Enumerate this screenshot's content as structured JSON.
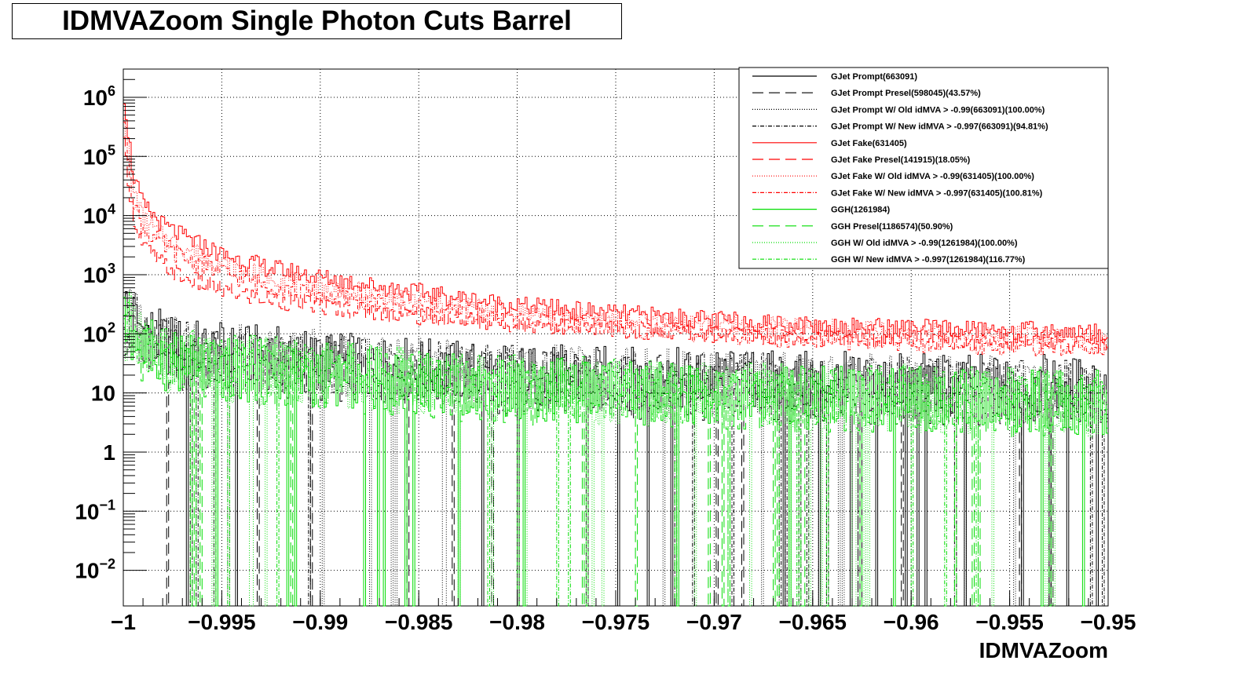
{
  "title": "IDMVAZoom Single Photon Cuts Barrel",
  "chart_data": {
    "type": "line",
    "title": "IDMVAZoom Single Photon Cuts Barrel",
    "xlabel": "IDMVAZoom",
    "ylabel": "",
    "xlim": [
      -1,
      -0.95
    ],
    "ylim": [
      0.0025,
      3000000
    ],
    "y_scale": "log",
    "grid": true,
    "x_ticks": [
      "−1",
      "−0.995",
      "−0.99",
      "−0.985",
      "−0.98",
      "−0.975",
      "−0.97",
      "−0.965",
      "−0.96",
      "−0.955",
      "−0.95"
    ],
    "x_tick_values": [
      -1,
      -0.995,
      -0.99,
      -0.985,
      -0.98,
      -0.975,
      -0.97,
      -0.965,
      -0.96,
      -0.955,
      -0.95
    ],
    "y_ticks": [
      {
        "value": 1000000,
        "base": "10",
        "exp": "6"
      },
      {
        "value": 100000,
        "base": "10",
        "exp": "5"
      },
      {
        "value": 10000,
        "base": "10",
        "exp": "4"
      },
      {
        "value": 1000,
        "base": "10",
        "exp": "3"
      },
      {
        "value": 100,
        "base": "10",
        "exp": "2"
      },
      {
        "value": 10,
        "base": "10",
        "exp": ""
      },
      {
        "value": 1,
        "base": "1",
        "exp": ""
      },
      {
        "value": 0.1,
        "base": "10",
        "exp": "−1"
      },
      {
        "value": 0.01,
        "base": "10",
        "exp": "−2"
      }
    ],
    "legend_position": "top-right",
    "series": [
      {
        "name": "GJet Prompt(663091)",
        "color": "#000000",
        "dash": "solid",
        "x": [
          -1,
          -0.999,
          -0.998,
          -0.997,
          -0.995,
          -0.99,
          -0.985,
          -0.98,
          -0.975,
          -0.97,
          -0.965,
          -0.96,
          -0.955,
          -0.95
        ],
        "y": [
          300,
          120,
          70,
          55,
          45,
          35,
          25,
          20,
          18,
          16,
          15,
          14,
          13,
          12
        ]
      },
      {
        "name": "GJet Prompt Presel(598045)(43.57%)",
        "color": "#000000",
        "dash": "longdash",
        "x": [
          -1,
          -0.999,
          -0.998,
          -0.997,
          -0.995,
          -0.99,
          -0.985,
          -0.98,
          -0.975,
          -0.97,
          -0.965,
          -0.96,
          -0.955,
          -0.95
        ],
        "y": [
          150,
          70,
          45,
          38,
          32,
          25,
          18,
          15,
          13,
          12,
          11,
          10,
          9,
          9
        ]
      },
      {
        "name": "GJet Prompt W/ Old idMVA > -0.99(663091)(100.00%)",
        "color": "#000000",
        "dash": "dotted",
        "x": [
          -1,
          -0.999,
          -0.998,
          -0.997,
          -0.995,
          -0.99,
          -0.985,
          -0.98,
          -0.975,
          -0.97,
          -0.965,
          -0.96,
          -0.955,
          -0.95
        ],
        "y": [
          280,
          110,
          65,
          50,
          42,
          33,
          24,
          19,
          17,
          15,
          14,
          13,
          12,
          11
        ]
      },
      {
        "name": "GJet Prompt W/ New idMVA > -0.997(663091)(94.81%)",
        "color": "#000000",
        "dash": "dashdot",
        "x": [
          -1,
          -0.999,
          -0.998,
          -0.997,
          -0.995,
          -0.99,
          -0.985,
          -0.98,
          -0.975,
          -0.97,
          -0.965,
          -0.96,
          -0.955,
          -0.95
        ],
        "y": [
          260,
          105,
          62,
          48,
          40,
          31,
          23,
          18,
          16,
          14,
          13,
          12,
          11,
          11
        ]
      },
      {
        "name": "GJet Fake(631405)",
        "color": "#ff0000",
        "dash": "solid",
        "x": [
          -1,
          -0.9995,
          -0.999,
          -0.998,
          -0.997,
          -0.995,
          -0.993,
          -0.99,
          -0.985,
          -0.98,
          -0.975,
          -0.97,
          -0.965,
          -0.96,
          -0.955,
          -0.95
        ],
        "y": [
          1500000,
          50000,
          15000,
          7000,
          4500,
          2200,
          1400,
          900,
          500,
          300,
          220,
          170,
          140,
          125,
          115,
          105
        ]
      },
      {
        "name": "GJet Fake Presel(141915)(18.05%)",
        "color": "#ff0000",
        "dash": "longdash",
        "x": [
          -1,
          -0.9995,
          -0.999,
          -0.998,
          -0.997,
          -0.995,
          -0.993,
          -0.99,
          -0.985,
          -0.98,
          -0.975,
          -0.97,
          -0.965,
          -0.96,
          -0.955,
          -0.95
        ],
        "y": [
          200000,
          10000,
          3000,
          1500,
          900,
          550,
          400,
          300,
          200,
          150,
          120,
          100,
          90,
          80,
          75,
          70
        ]
      },
      {
        "name": "GJet Fake W/ Old idMVA > -0.99(631405)(100.00%)",
        "color": "#ff0000",
        "dash": "dotted",
        "x": [
          -1,
          -0.9995,
          -0.999,
          -0.998,
          -0.997,
          -0.995,
          -0.993,
          -0.99,
          -0.985,
          -0.98,
          -0.975,
          -0.97,
          -0.965,
          -0.96,
          -0.955,
          -0.95
        ],
        "y": [
          800000,
          30000,
          9000,
          4500,
          3000,
          1500,
          1000,
          650,
          380,
          240,
          180,
          145,
          125,
          110,
          100,
          95
        ]
      },
      {
        "name": "GJet Fake W/ New idMVA > -0.997(631405)(100.81%)",
        "color": "#ff0000",
        "dash": "dashdot",
        "x": [
          -1,
          -0.9995,
          -0.999,
          -0.998,
          -0.997,
          -0.995,
          -0.993,
          -0.99,
          -0.985,
          -0.98,
          -0.975,
          -0.97,
          -0.965,
          -0.96,
          -0.955,
          -0.95
        ],
        "y": [
          600000,
          20000,
          6000,
          3200,
          2000,
          1100,
          700,
          450,
          260,
          170,
          125,
          95,
          80,
          70,
          62,
          58
        ]
      },
      {
        "name": "GGH(1261984)",
        "color": "#00dd00",
        "dash": "solid",
        "x": [
          -1,
          -0.999,
          -0.998,
          -0.997,
          -0.995,
          -0.99,
          -0.985,
          -0.98,
          -0.975,
          -0.97,
          -0.965,
          -0.96,
          -0.955,
          -0.95
        ],
        "y": [
          150,
          60,
          40,
          30,
          25,
          20,
          15,
          12,
          10,
          9,
          8,
          8,
          7,
          7
        ]
      },
      {
        "name": "GGH Presel(1186574)(50.90%)",
        "color": "#00dd00",
        "dash": "longdash",
        "x": [
          -1,
          -0.999,
          -0.998,
          -0.997,
          -0.995,
          -0.99,
          -0.985,
          -0.98,
          -0.975,
          -0.97,
          -0.965,
          -0.96,
          -0.955,
          -0.95
        ],
        "y": [
          120,
          50,
          35,
          27,
          22,
          18,
          13,
          10,
          9,
          8,
          7,
          7,
          6,
          6
        ]
      },
      {
        "name": "GGH W/ Old idMVA > -0.99(1261984)(100.00%)",
        "color": "#00dd00",
        "dash": "dotted",
        "x": [
          -1,
          -0.999,
          -0.998,
          -0.997,
          -0.995,
          -0.99,
          -0.985,
          -0.98,
          -0.975,
          -0.97,
          -0.965,
          -0.96,
          -0.955,
          -0.95
        ],
        "y": [
          140,
          58,
          38,
          29,
          24,
          19,
          14,
          11,
          10,
          9,
          8,
          7,
          7,
          6
        ]
      },
      {
        "name": "GGH W/ New idMVA > -0.997(1261984)(116.77%)",
        "color": "#00dd00",
        "dash": "dashdot",
        "x": [
          -1,
          -0.999,
          -0.998,
          -0.997,
          -0.995,
          -0.99,
          -0.985,
          -0.98,
          -0.975,
          -0.97,
          -0.965,
          -0.96,
          -0.955,
          -0.95
        ],
        "y": [
          200,
          80,
          50,
          36,
          30,
          23,
          17,
          13,
          11,
          10,
          9,
          9,
          8,
          8
        ]
      }
    ]
  }
}
